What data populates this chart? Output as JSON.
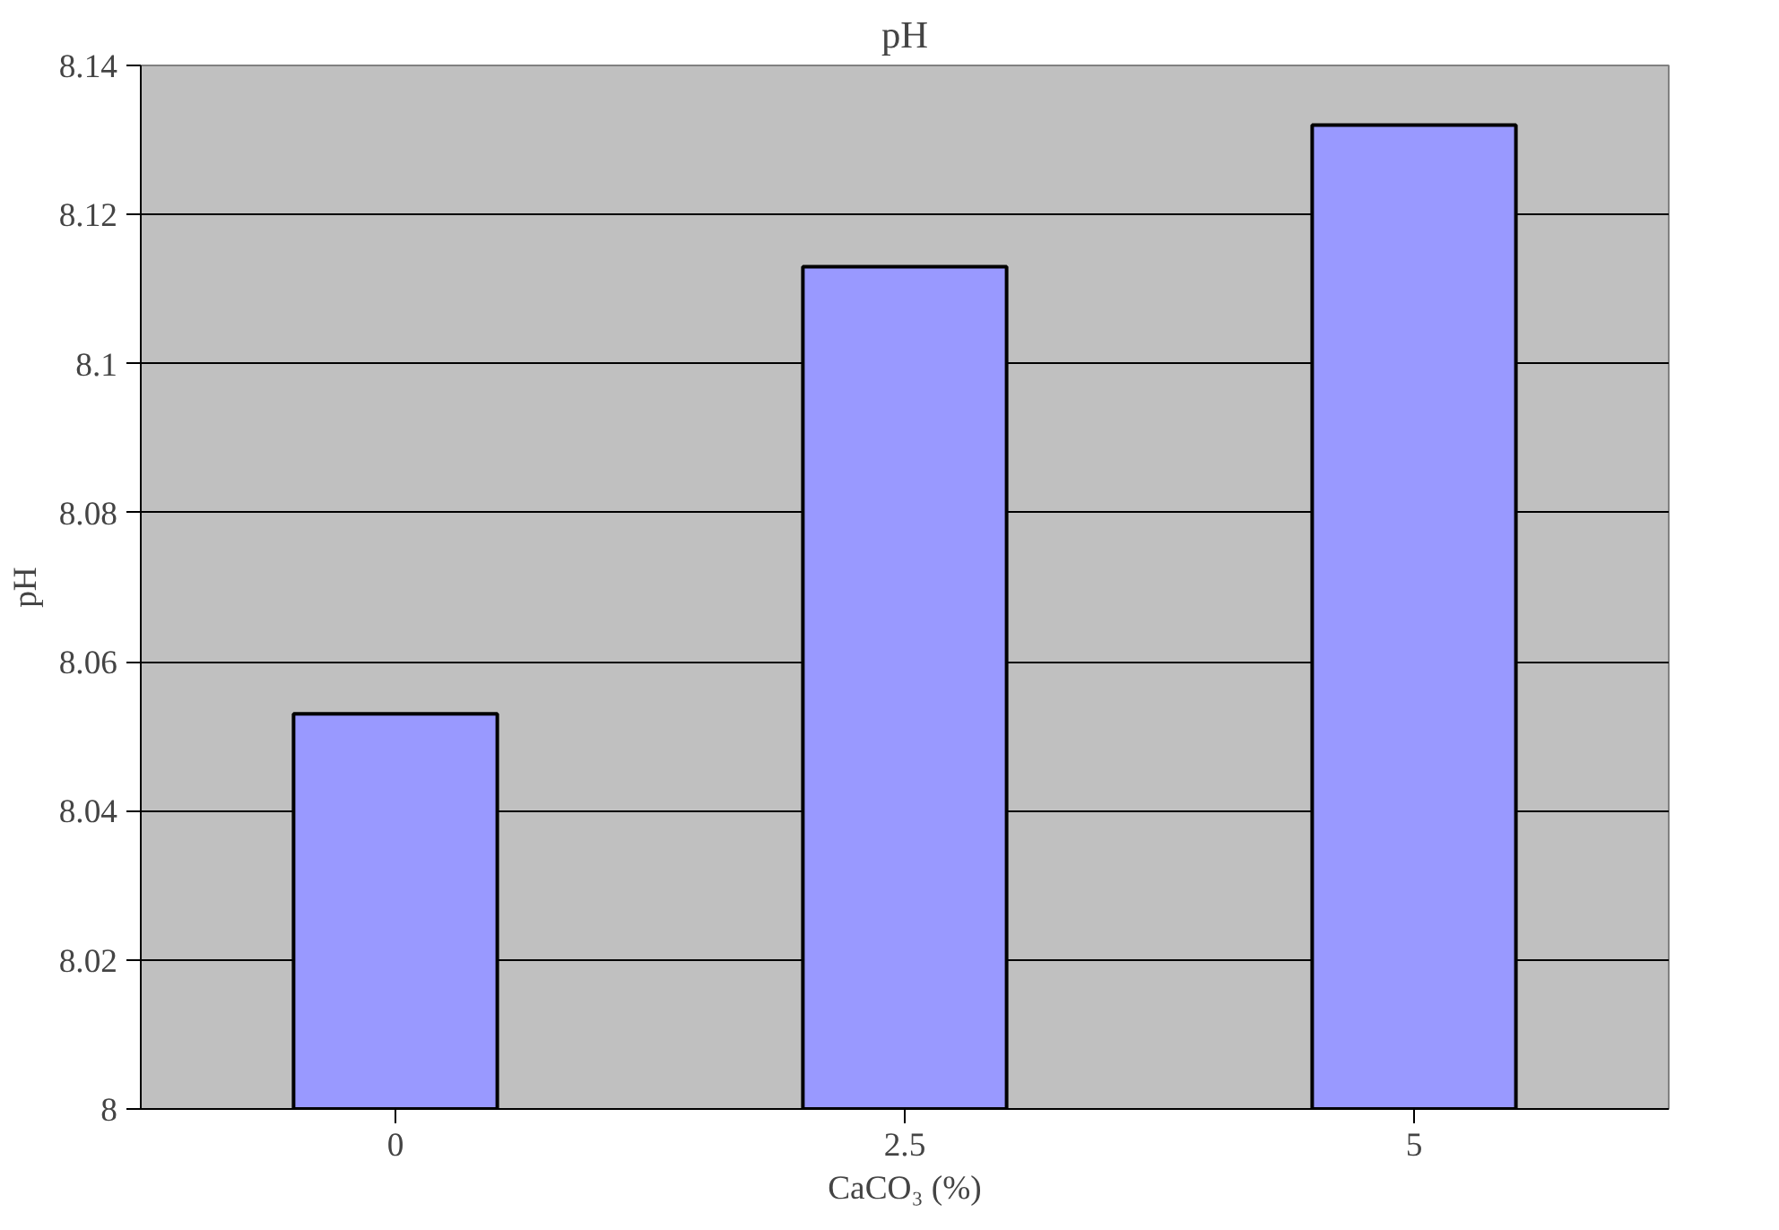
{
  "chart_data": {
    "type": "bar",
    "title": "pH",
    "xlabel": "CaCO₃ (%)",
    "ylabel": "pH",
    "categories": [
      "0",
      "2.5",
      "5"
    ],
    "values": [
      8.053,
      8.113,
      8.132
    ],
    "color": "#9999ff",
    "ylim": [
      8,
      8.14
    ],
    "yticks": [
      8,
      {
        "value": 8.02,
        "label": "8.02"
      },
      {
        "value": 8.04,
        "label": "8.04"
      },
      {
        "value": 8.06,
        "label": "8.06"
      },
      {
        "value": 8.08,
        "label": "8.08"
      },
      {
        "value": 8.1,
        "label": "8.1"
      },
      {
        "value": 8.12,
        "label": "8.12"
      },
      {
        "value": 8.14,
        "label": "8.14"
      }
    ],
    "grid": "y"
  }
}
